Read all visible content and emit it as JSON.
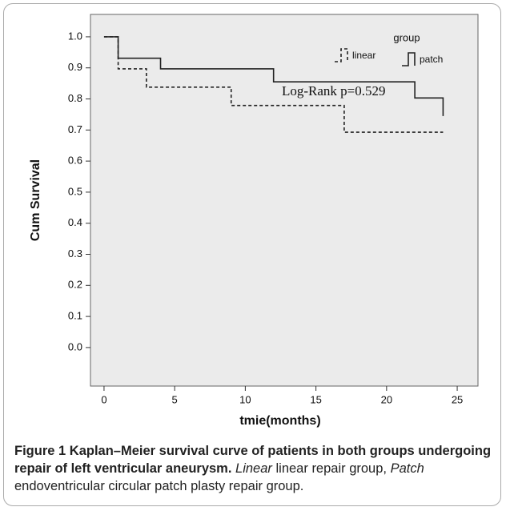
{
  "chart_data": {
    "type": "step",
    "xlabel": "tmie(months)",
    "ylabel": "Cum Survival",
    "xlim": [
      -0.96,
      26.47
    ],
    "ylim": [
      -0.124,
      1.072
    ],
    "xticks": [
      0,
      5,
      10,
      15,
      20,
      25
    ],
    "yticks": [
      {
        "value": 0,
        "label": "0.0"
      },
      0.1,
      0.2,
      0.3,
      0.4,
      0.5,
      0.6,
      0.7,
      0.8,
      0.9,
      {
        "value": 1,
        "label": "1.0"
      }
    ],
    "legend_title": "group",
    "annotation": "Log-Rank p=0.529",
    "series": [
      {
        "name": "linear",
        "color": "#222222",
        "dash": true,
        "x": [
          0,
          1,
          3,
          9,
          17,
          24
        ],
        "values": [
          1,
          0.897,
          0.838,
          0.779,
          0.693,
          0.693
        ]
      },
      {
        "name": "patch",
        "color": "#222222",
        "dash": false,
        "x": [
          0,
          1,
          4,
          12,
          22,
          24
        ],
        "values": [
          1,
          0.931,
          0.897,
          0.855,
          0.803,
          0.745
        ]
      }
    ]
  },
  "caption": {
    "label": "Figure 1",
    "title": "Kaplan–Meier survival curve of patients in both groups undergoing repair of left ventricular aneurysm.",
    "notes": [
      {
        "term": "Linear",
        "definition": "linear repair group,"
      },
      {
        "term": "Patch",
        "definition": "endoventricular circular patch plasty repair group."
      }
    ]
  }
}
